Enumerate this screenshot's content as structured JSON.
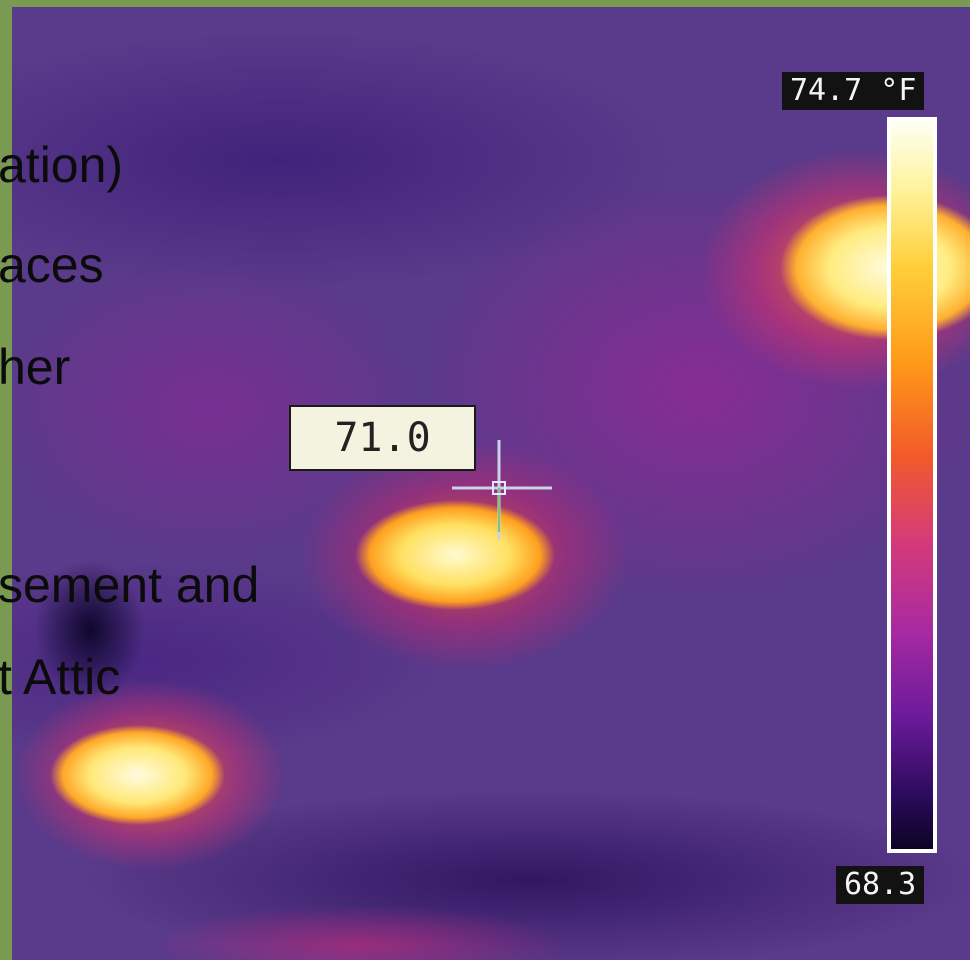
{
  "slide_text": {
    "line1": "ation)",
    "line2": "aces",
    "line3": "her",
    "line4": "sement and",
    "line5": "t Attic"
  },
  "thermal": {
    "spot_reading": "71.0",
    "scale_max": "74.7 °F",
    "scale_min": "68.3",
    "palette": "ironbow"
  },
  "colors": {
    "frame": "#7a9a52",
    "background": "#5a3a8a",
    "hot": "#fff7c0"
  }
}
